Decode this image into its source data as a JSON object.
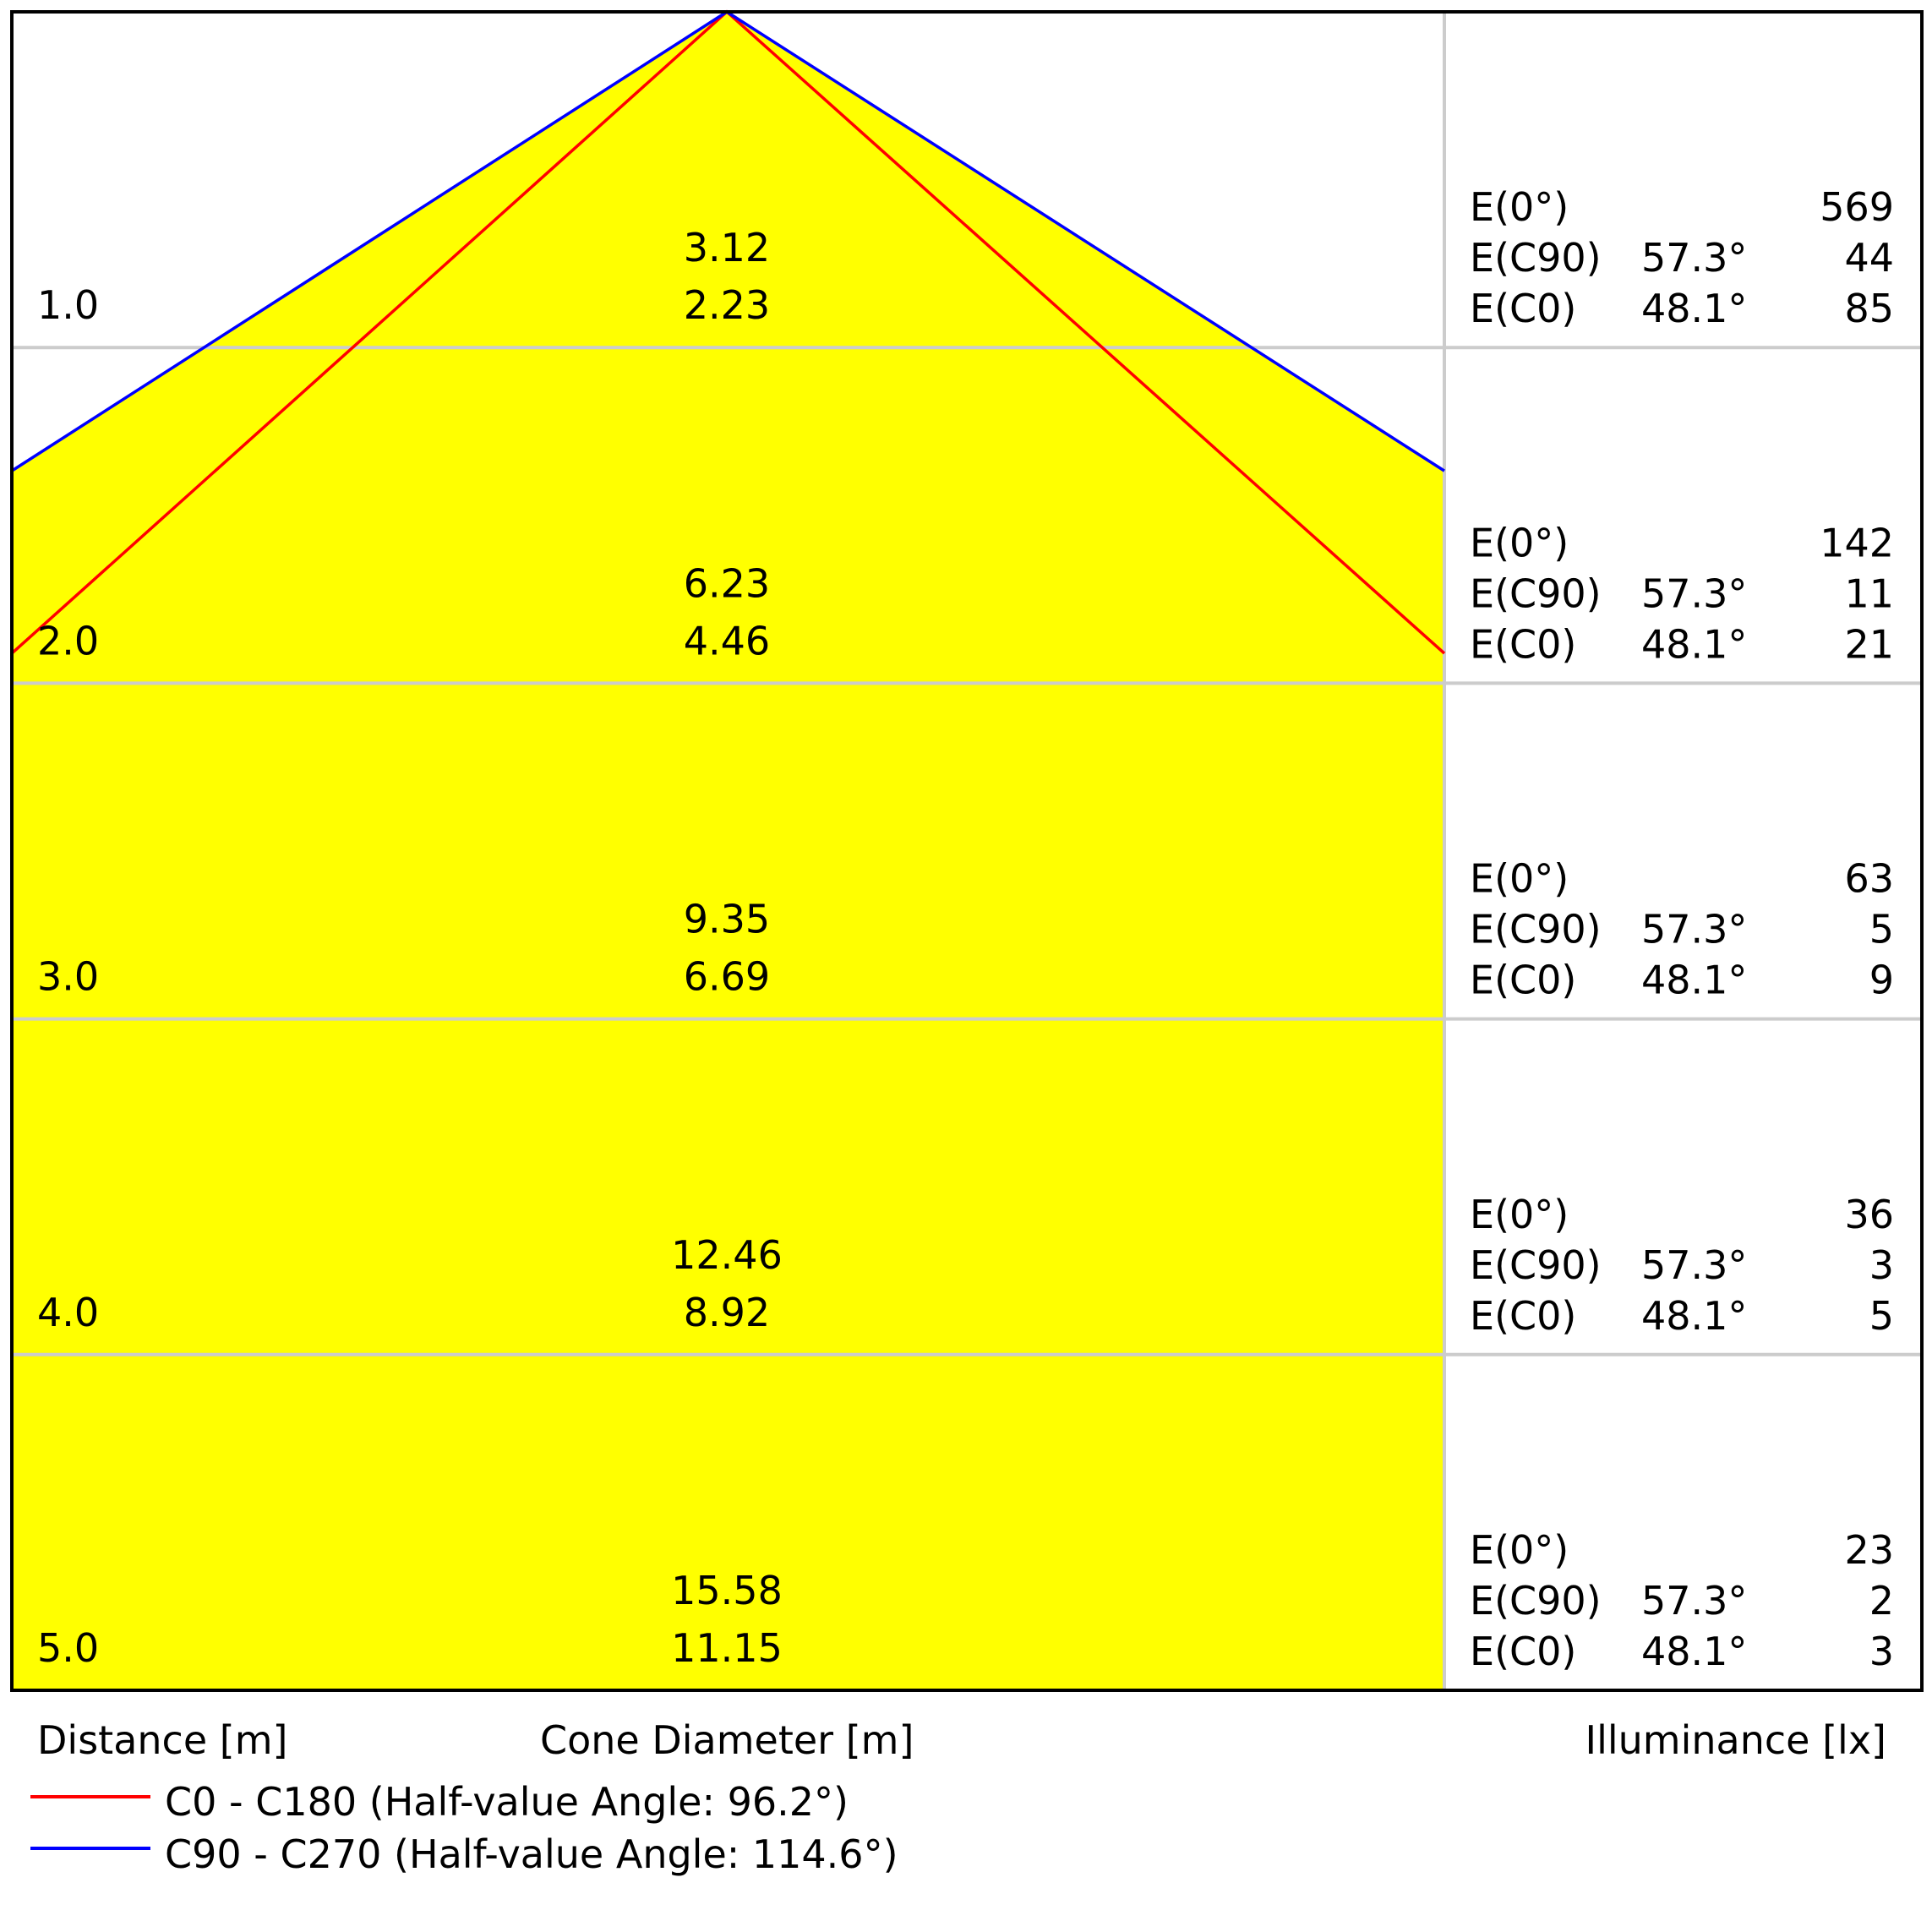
{
  "chart_data": {
    "type": "cone-diagram",
    "distance_unit_label": "Distance [m]",
    "diameter_label": "Cone Diameter [m]",
    "illuminance_label": "Illuminance [lx]",
    "distance_range": [
      0,
      5
    ],
    "fill_color": "#ffff00",
    "series": [
      {
        "name": "C0 - C180 (Half-value Angle: 96.2°)",
        "half_value_angle": 96.2,
        "color": "#ff0000"
      },
      {
        "name": "C90 - C270 (Half-value Angle: 114.6°)",
        "half_value_angle": 114.6,
        "color": "#0000ff"
      }
    ],
    "rows": [
      {
        "distance": "1.0",
        "diameter_c90": "3.12",
        "diameter_c0": "2.23",
        "e0": "569",
        "ec90_angle": "57.3°",
        "ec90": "44",
        "ec0_angle": "48.1°",
        "ec0": "85"
      },
      {
        "distance": "2.0",
        "diameter_c90": "6.23",
        "diameter_c0": "4.46",
        "e0": "142",
        "ec90_angle": "57.3°",
        "ec90": "11",
        "ec0_angle": "48.1°",
        "ec0": "21"
      },
      {
        "distance": "3.0",
        "diameter_c90": "9.35",
        "diameter_c0": "6.69",
        "e0": "63",
        "ec90_angle": "57.3°",
        "ec90": "5",
        "ec0_angle": "48.1°",
        "ec0": "9"
      },
      {
        "distance": "4.0",
        "diameter_c90": "12.46",
        "diameter_c0": "8.92",
        "e0": "36",
        "ec90_angle": "57.3°",
        "ec90": "3",
        "ec0_angle": "48.1°",
        "ec0": "5"
      },
      {
        "distance": "5.0",
        "diameter_c90": "15.58",
        "diameter_c0": "11.15",
        "e0": "23",
        "ec90_angle": "57.3°",
        "ec90": "2",
        "ec0_angle": "48.1°",
        "ec0": "3"
      }
    ],
    "row_labels": {
      "e0": "E(0°)",
      "ec90": "E(C90)",
      "ec0": "E(C0)"
    }
  }
}
